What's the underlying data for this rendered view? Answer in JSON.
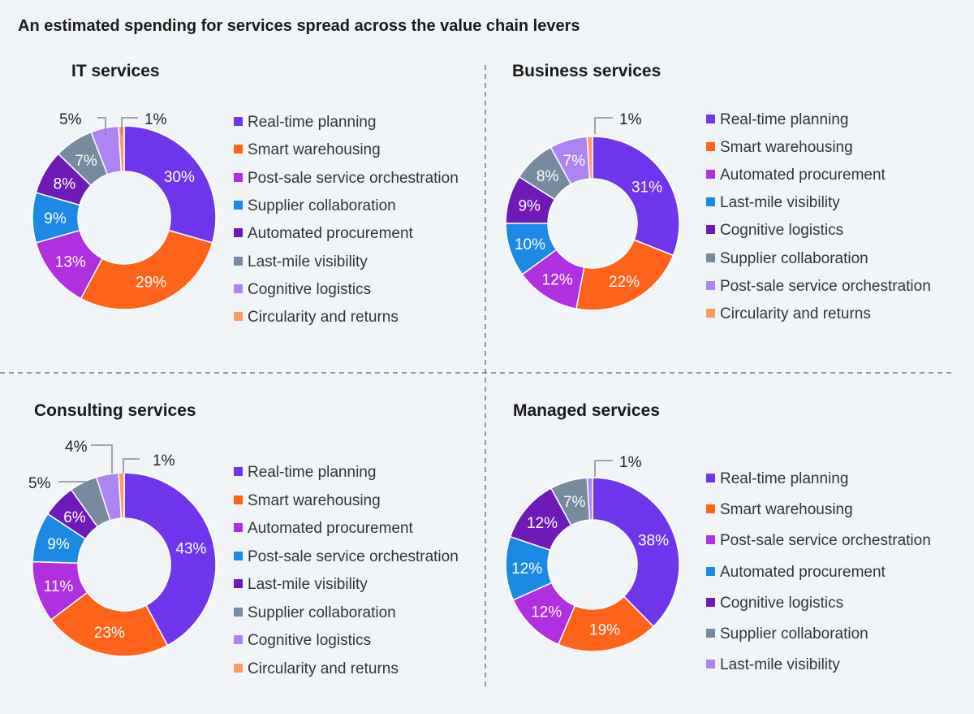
{
  "title": "An estimated spending for services spread across the value chain levers",
  "palette": [
    "#7036EE",
    "#FF6319",
    "#B02FE0",
    "#1C8AE5",
    "#6F1AB8",
    "#778A9E",
    "#AC85F2",
    "#FF9966"
  ],
  "chart_data": [
    {
      "type": "pie",
      "title": "IT services",
      "categories": [
        "Real-time planning",
        "Smart warehousing",
        "Post-sale service orchestration",
        "Supplier collaboration",
        "Automated procurement",
        "Last-mile visibility",
        "Cognitive logistics",
        "Circularity and returns"
      ],
      "values": [
        30,
        29,
        13,
        9,
        8,
        7,
        5,
        1
      ],
      "labels": [
        "30%",
        "29%",
        "13%",
        "9%",
        "8%",
        "7%",
        "5%",
        "1%"
      ]
    },
    {
      "type": "pie",
      "title": "Business services",
      "categories": [
        "Real-time planning",
        "Smart warehousing",
        "Automated procurement",
        "Last-mile visibility",
        "Cognitive logistics",
        "Supplier collaboration",
        "Post-sale service orchestration",
        "Circularity and returns"
      ],
      "values": [
        31,
        22,
        12,
        10,
        9,
        8,
        7,
        1
      ],
      "labels": [
        "31%",
        "22%",
        "12%",
        "10%",
        "9%",
        "8%",
        "7%",
        "1%"
      ]
    },
    {
      "type": "pie",
      "title": "Consulting services",
      "categories": [
        "Real-time planning",
        "Smart warehousing",
        "Automated procurement",
        "Post-sale service orchestration",
        "Last-mile visibility",
        "Supplier collaboration",
        "Cognitive logistics",
        "Circularity and returns"
      ],
      "values": [
        43,
        23,
        11,
        9,
        6,
        5,
        4,
        1
      ],
      "labels": [
        "43%",
        "23%",
        "11%",
        "9%",
        "6%",
        "5%",
        "4%",
        "1%"
      ]
    },
    {
      "type": "pie",
      "title": "Managed services",
      "categories": [
        "Real-time planning",
        "Smart warehousing",
        "Post-sale service orchestration",
        "Automated procurement",
        "Cognitive logistics",
        "Supplier collaboration",
        "Last-mile visibility"
      ],
      "values": [
        38,
        19,
        12,
        12,
        12,
        7,
        1
      ],
      "labels": [
        "38%",
        "19%",
        "12%",
        "12%",
        "12%",
        "7%",
        "1%"
      ]
    }
  ]
}
